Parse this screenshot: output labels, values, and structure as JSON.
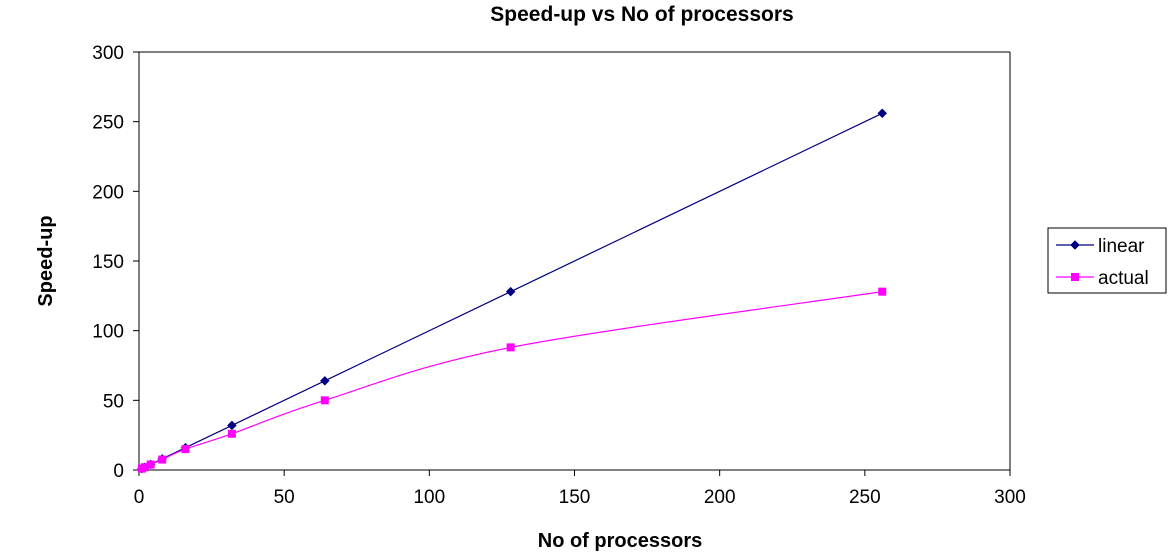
{
  "chart_data": {
    "type": "line",
    "title": "Speed-up vs No of processors",
    "xlabel": "No of processors",
    "ylabel": "Speed-up",
    "xlim": [
      0,
      300
    ],
    "ylim": [
      0,
      300
    ],
    "x_ticks": [
      0,
      50,
      100,
      150,
      200,
      250,
      300
    ],
    "y_ticks": [
      0,
      50,
      100,
      150,
      200,
      250,
      300
    ],
    "grid": false,
    "legend_position": "right",
    "series": [
      {
        "name": "linear",
        "color": "#000080",
        "marker": "diamond",
        "smooth": false,
        "x": [
          1,
          2,
          4,
          8,
          16,
          32,
          64,
          128,
          256
        ],
        "y": [
          1,
          2,
          4,
          8,
          16,
          32,
          64,
          128,
          256
        ]
      },
      {
        "name": "actual",
        "color": "#ff00ff",
        "marker": "square",
        "smooth": true,
        "x": [
          1,
          2,
          4,
          8,
          16,
          32,
          64,
          128,
          256
        ],
        "y": [
          1,
          2,
          3.9,
          7.5,
          15,
          26,
          50,
          88,
          128
        ]
      }
    ]
  }
}
